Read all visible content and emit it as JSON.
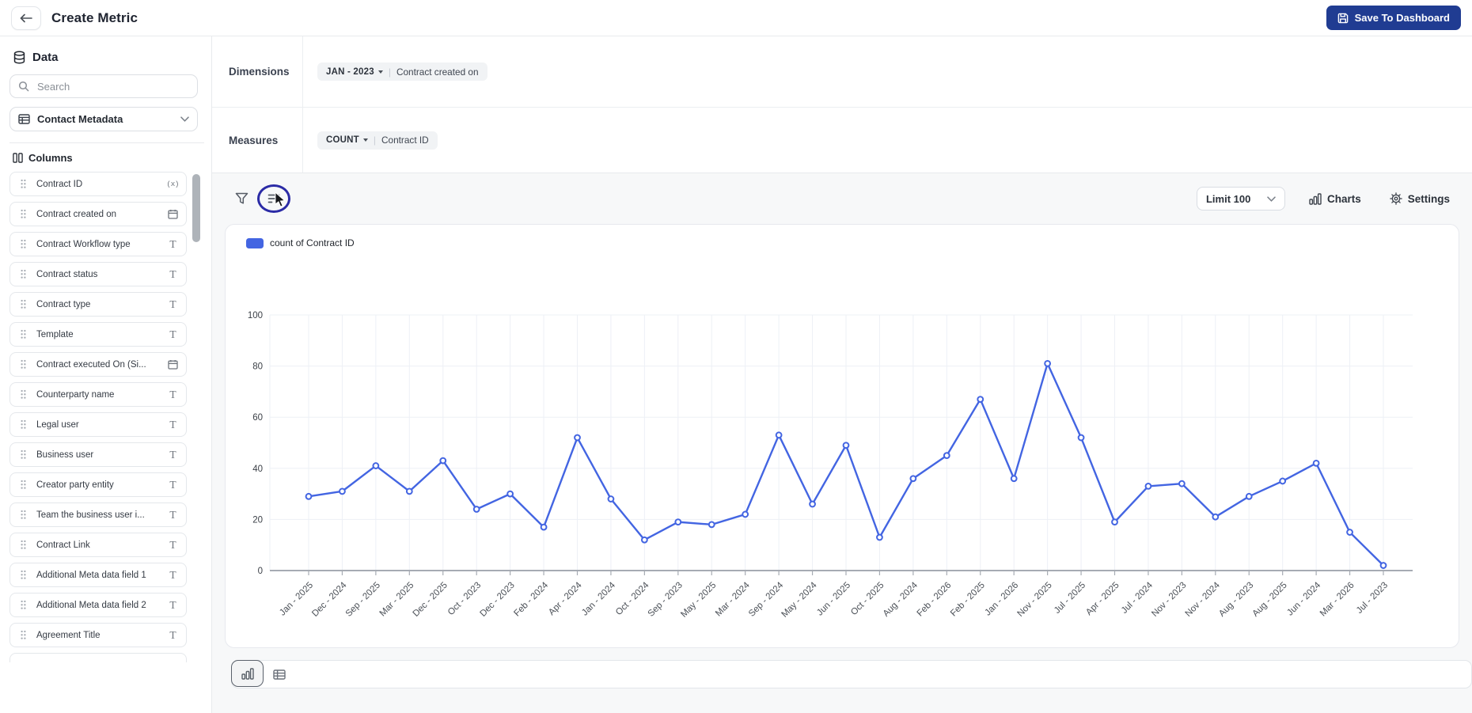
{
  "header": {
    "title": "Create Metric",
    "save_button": "Save To Dashboard"
  },
  "sidebar": {
    "title": "Data",
    "search_placeholder": "Search",
    "source_selector": "Contact Metadata",
    "columns_title": "Columns",
    "columns": [
      {
        "label": "Contract ID",
        "type": "function"
      },
      {
        "label": "Contract created on",
        "type": "date"
      },
      {
        "label": "Contract Workflow type",
        "type": "text"
      },
      {
        "label": "Contract status",
        "type": "text"
      },
      {
        "label": "Contract type",
        "type": "text"
      },
      {
        "label": "Template",
        "type": "text"
      },
      {
        "label": "Contract executed On (Si...",
        "type": "date"
      },
      {
        "label": "Counterparty name",
        "type": "text"
      },
      {
        "label": "Legal user",
        "type": "text"
      },
      {
        "label": "Business user",
        "type": "text"
      },
      {
        "label": "Creator party entity",
        "type": "text"
      },
      {
        "label": "Team the business user i...",
        "type": "text"
      },
      {
        "label": "Contract Link",
        "type": "text"
      },
      {
        "label": "Additional Meta data field 1",
        "type": "text"
      },
      {
        "label": "Additional Meta data field 2",
        "type": "text"
      },
      {
        "label": "Agreement Title",
        "type": "text"
      }
    ]
  },
  "builder": {
    "dimensions_label": "Dimensions",
    "dimension_chip": {
      "modifier": "JAN - 2023",
      "field": "Contract created on"
    },
    "measures_label": "Measures",
    "measure_chip": {
      "modifier": "COUNT",
      "field": "Contract ID"
    }
  },
  "toolbar": {
    "limit_label": "Limit 100",
    "charts_label": "Charts",
    "settings_label": "Settings"
  },
  "chart_data": {
    "type": "line",
    "legend": [
      "count of Contract ID"
    ],
    "legend_position": "top-left",
    "grid": true,
    "ylim": [
      0,
      100
    ],
    "yticks": [
      0,
      20,
      40,
      60,
      80,
      100
    ],
    "categories": [
      "Jan - 2025",
      "Dec - 2024",
      "Sep - 2025",
      "Mar - 2025",
      "Dec - 2025",
      "Oct - 2023",
      "Dec - 2023",
      "Feb - 2024",
      "Apr - 2024",
      "Jan - 2024",
      "Oct - 2024",
      "Sep - 2023",
      "May - 2025",
      "Mar - 2024",
      "Sep - 2024",
      "May - 2024",
      "Jun - 2025",
      "Oct - 2025",
      "Aug - 2024",
      "Feb - 2026",
      "Feb - 2025",
      "Jan - 2026",
      "Nov - 2025",
      "Jul - 2025",
      "Apr - 2025",
      "Jul - 2024",
      "Nov - 2023",
      "Nov - 2024",
      "Aug - 2023",
      "Aug - 2025",
      "Jun - 2024",
      "Mar - 2026",
      "Jul - 2023"
    ],
    "series": [
      {
        "name": "count of Contract ID",
        "color": "#4365e2",
        "values": [
          29,
          31,
          41,
          31,
          43,
          24,
          30,
          17,
          52,
          28,
          12,
          19,
          18,
          22,
          53,
          26,
          49,
          13,
          36,
          45,
          67,
          36,
          81,
          52,
          19,
          33,
          34,
          21,
          29,
          35,
          42,
          15,
          2
        ]
      }
    ]
  },
  "colors": {
    "accent_navy": "#203c92",
    "series_blue": "#4365e2",
    "annotation_ring": "#2b2ba6",
    "chip_bg": "#f1f3f5",
    "panel_border": "#e7e9ee"
  }
}
